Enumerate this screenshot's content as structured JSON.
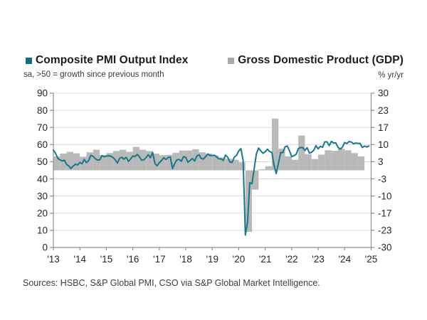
{
  "legend": {
    "pmi": {
      "label": "Composite PMI Output Index",
      "color": "#156d82"
    },
    "gdp": {
      "label": "Gross Domestic Product (GDP)",
      "color": "#a9a9a9"
    }
  },
  "subtitles": {
    "left": "sa, >50 = growth since previous month",
    "right": "% yr/yr"
  },
  "source": "Sources: HSBC, S&P Global PMI, CSO via S&P Global Market Intelligence.",
  "colors": {
    "pmi_line": "#15788c",
    "gdp_bar": "#b9b9b9",
    "gridline": "#dadada",
    "axis": "#8f8f8f",
    "tick_text": "#262626"
  },
  "chart_data": {
    "type": "line+bar combo",
    "title": "Composite PMI Output Index vs Gross Domestic Product (GDP)",
    "left_axis": {
      "label": "sa, >50 = growth since previous month",
      "range": [
        0,
        90
      ],
      "ticks": [
        "90",
        "80",
        "70",
        "60",
        "50",
        "40",
        "30",
        "20",
        "10",
        "0"
      ]
    },
    "right_axis": {
      "label": "% yr/yr",
      "range": [
        -30,
        30
      ],
      "ticks": [
        "30",
        "23",
        "17",
        "10",
        "3",
        "-3",
        "-10",
        "-17",
        "-23",
        "-30"
      ],
      "baseline": 0
    },
    "x_axis": {
      "labels": [
        "'13",
        "'14",
        "'15",
        "'16",
        "'17",
        "'18",
        "'19",
        "'20",
        "'21",
        "'22",
        "'23",
        "'24",
        "'25"
      ],
      "start_year": 2013,
      "end_year": 2025
    },
    "grid": true,
    "legend_position": "top",
    "series": [
      {
        "name": "Composite PMI Output Index",
        "type": "line",
        "axis": "left",
        "freq": "monthly",
        "start": "2013-01",
        "values": [
          56.8,
          54.9,
          52.0,
          51.1,
          50.5,
          50.9,
          48.4,
          47.5,
          46.1,
          47.5,
          48.6,
          48.1,
          49.6,
          48.8,
          51.3,
          49.5,
          50.7,
          53.8,
          53.1,
          51.8,
          51.0,
          51.1,
          53.6,
          52.9,
          53.3,
          53.5,
          53.2,
          52.5,
          51.2,
          49.2,
          52.0,
          52.6,
          51.5,
          52.6,
          50.2,
          51.6,
          53.3,
          53.1,
          54.3,
          52.8,
          50.9,
          51.1,
          52.4,
          54.1,
          52.4,
          55.4,
          49.1,
          47.6,
          49.4,
          50.7,
          52.3,
          51.3,
          52.5,
          52.7,
          46.0,
          49.0,
          51.1,
          51.3,
          50.3,
          53.0,
          52.5,
          49.7,
          50.8,
          51.9,
          50.4,
          53.3,
          54.1,
          51.9,
          51.6,
          53.0,
          54.5,
          53.6,
          53.6,
          53.8,
          52.7,
          51.7,
          51.7,
          50.8,
          53.9,
          52.6,
          49.8,
          49.6,
          52.7,
          53.7,
          56.3,
          57.6,
          50.6,
          7.2,
          14.8,
          37.8,
          37.2,
          46.0,
          54.6,
          58.0,
          56.3,
          54.9,
          55.8,
          57.3,
          56.0,
          55.4,
          48.1,
          43.1,
          49.2,
          55.4,
          55.3,
          58.7,
          59.2,
          56.4,
          53.0,
          53.5,
          54.3,
          57.6,
          58.3,
          58.2,
          56.6,
          58.2,
          55.1,
          55.5,
          56.7,
          59.4,
          57.5,
          59.0,
          58.4,
          61.6,
          61.6,
          59.4,
          61.9,
          60.9,
          61.0,
          58.4,
          57.4,
          58.5,
          61.2,
          60.6,
          61.8,
          61.5,
          60.5,
          60.9,
          60.7,
          60.7,
          58.3,
          59.1,
          58.6,
          59.2
        ]
      },
      {
        "name": "Gross Domestic Product (GDP)",
        "type": "bar",
        "axis": "right",
        "freq": "quarterly",
        "start": "2013-Q1",
        "values": [
          5.4,
          6.5,
          7.2,
          6.6,
          5.3,
          7.0,
          8.0,
          5.9,
          6.7,
          7.5,
          8.0,
          7.2,
          9.1,
          8.0,
          7.5,
          6.5,
          5.9,
          6.0,
          6.8,
          7.7,
          7.7,
          8.2,
          7.0,
          6.5,
          5.8,
          5.0,
          4.5,
          4.1,
          3.1,
          -23.9,
          -7.5,
          0.4,
          1.6,
          20.1,
          8.4,
          5.4,
          4.1,
          13.5,
          6.3,
          4.4,
          6.1,
          7.8,
          7.6,
          8.4,
          7.8,
          6.7,
          5.4
        ]
      }
    ]
  }
}
